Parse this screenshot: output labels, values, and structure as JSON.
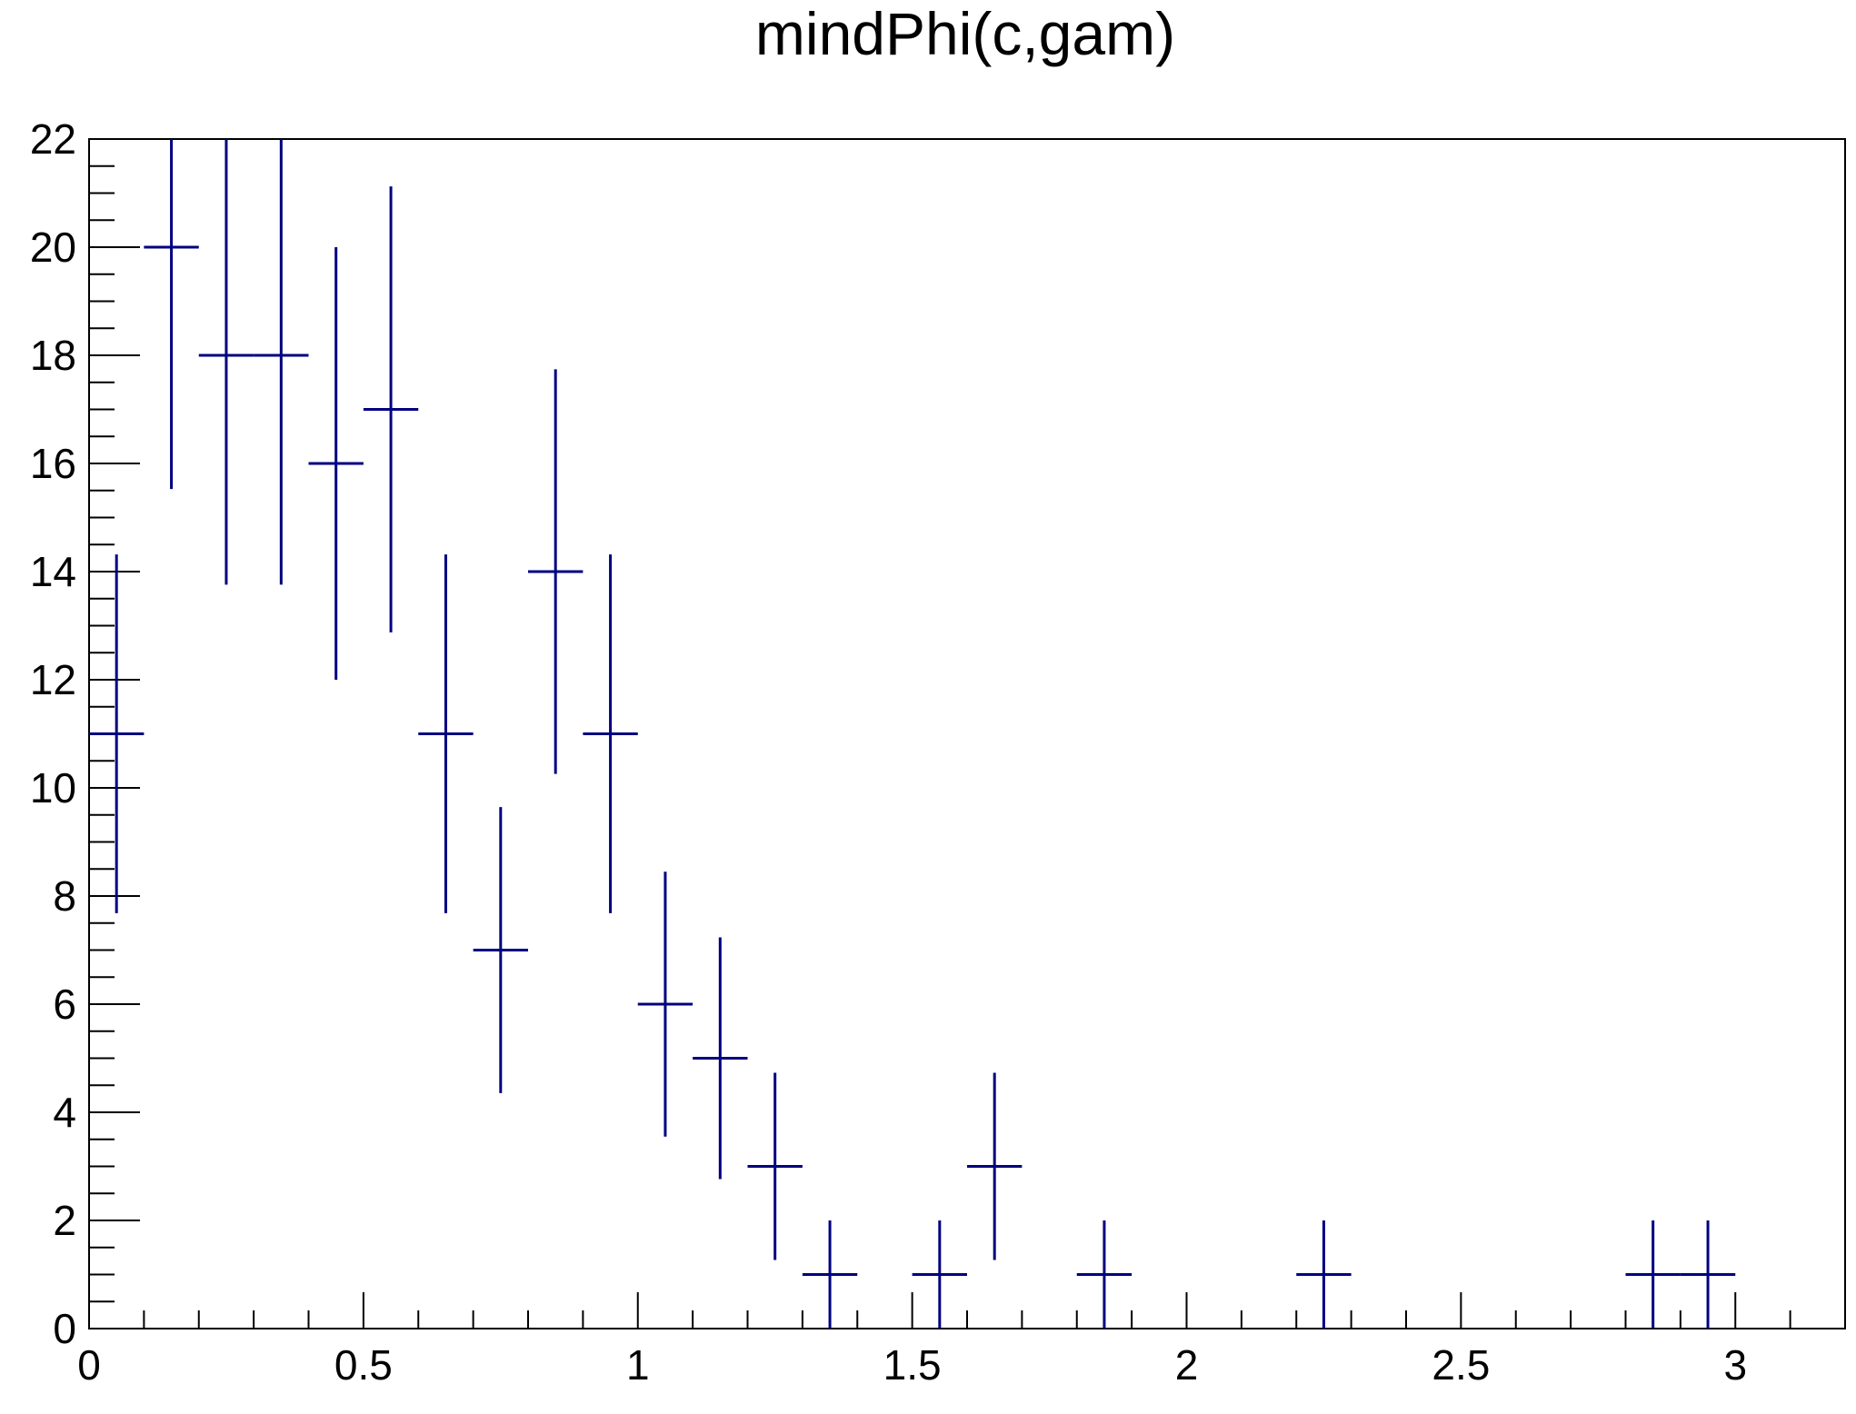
{
  "chart_data": {
    "type": "histogram",
    "title": "mindPhi(c,gam)",
    "xlabel": "",
    "ylabel": "",
    "xlim": [
      0,
      3.2
    ],
    "ylim": [
      0,
      22
    ],
    "grid": false,
    "legend": "none",
    "x_ticks": [
      "0",
      "0.5",
      "1",
      "1.5",
      "2",
      "2.5",
      "3"
    ],
    "y_ticks": [
      "0",
      "2",
      "4",
      "6",
      "8",
      "10",
      "12",
      "14",
      "16",
      "18",
      "20",
      "22"
    ],
    "bin_width": 0.1,
    "series": [
      {
        "x": [
          0.05,
          0.15,
          0.25,
          0.35,
          0.45,
          0.55,
          0.65,
          0.75,
          0.85,
          0.95,
          1.05,
          1.15,
          1.25,
          1.35,
          1.55,
          1.65,
          1.85,
          2.25,
          2.85,
          2.95
        ],
        "values": [
          11,
          20,
          18,
          18,
          16,
          17,
          11,
          7,
          14,
          11,
          6,
          5,
          3,
          1,
          1,
          3,
          1,
          1,
          1,
          1
        ],
        "color": "#000080"
      }
    ]
  }
}
